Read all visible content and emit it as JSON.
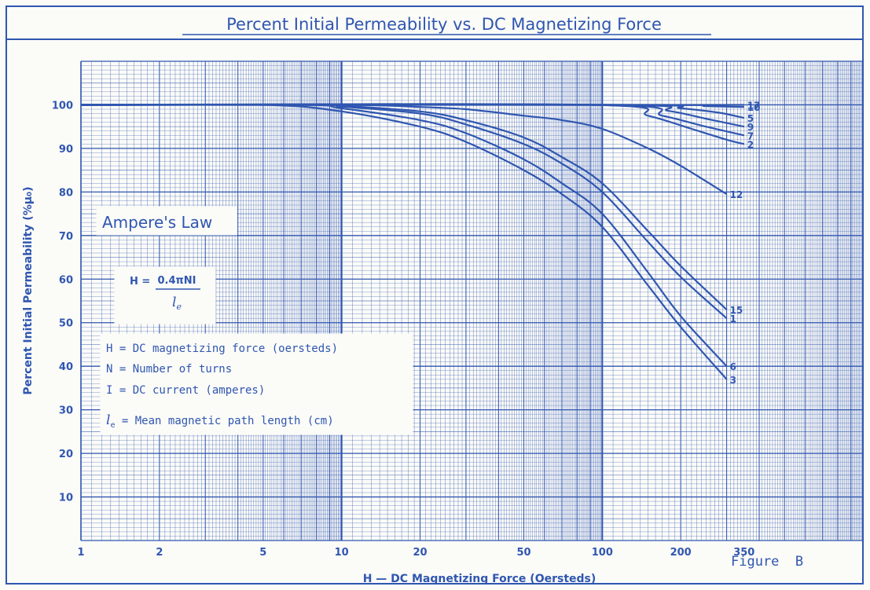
{
  "colors": {
    "ink": "#2f56b0",
    "paper": "#fbfbf8"
  },
  "chart_data": {
    "type": "line",
    "title": "Percent Initial Permeability vs. DC Magnetizing Force",
    "xlabel": "H — DC Magnetizing Force (Oersteds)",
    "ylabel": "Percent Initial Permeability (%μ₀)",
    "x_scale": "log",
    "xlim": [
      1,
      1000
    ],
    "ylim": [
      0,
      110
    ],
    "x_ticks": [
      1,
      2,
      5,
      10,
      20,
      50,
      100,
      200,
      350
    ],
    "x_tick_labels": [
      "1",
      "2",
      "5",
      "10",
      "20",
      "50",
      "100",
      "200",
      "350"
    ],
    "y_ticks": [
      10,
      20,
      30,
      40,
      50,
      60,
      70,
      80,
      90,
      100
    ],
    "y_tick_labels": [
      "10",
      "20",
      "30",
      "40",
      "50",
      "60",
      "70",
      "80",
      "90",
      "100"
    ],
    "grid": true,
    "figure_label": "Figure  B",
    "series": [
      {
        "name": "17",
        "x": [
          1,
          150,
          250,
          350
        ],
        "y": [
          100,
          100,
          100,
          100
        ]
      },
      {
        "name": "10",
        "x": [
          1,
          150,
          250,
          350
        ],
        "y": [
          100,
          100,
          99.7,
          99.5
        ]
      },
      {
        "name": "5",
        "x": [
          1,
          120,
          200,
          280,
          350
        ],
        "y": [
          100,
          100,
          99.2,
          98.2,
          97
        ]
      },
      {
        "name": "9",
        "x": [
          1,
          110,
          180,
          260,
          350
        ],
        "y": [
          100,
          100,
          98.6,
          96.6,
          95
        ]
      },
      {
        "name": "7",
        "x": [
          1,
          100,
          170,
          250,
          350
        ],
        "y": [
          100,
          100,
          97.5,
          95,
          93
        ]
      },
      {
        "name": "2",
        "x": [
          1,
          90,
          150,
          220,
          300,
          350
        ],
        "y": [
          100,
          100,
          97.5,
          94.5,
          92,
          91
        ]
      },
      {
        "name": "12",
        "x": [
          1,
          10,
          20,
          30,
          50,
          70,
          100,
          150,
          200,
          300
        ],
        "y": [
          100,
          100,
          99.5,
          99,
          97.5,
          96.5,
          94.5,
          90,
          86,
          79.5
        ]
      },
      {
        "name": "15",
        "x": [
          1,
          8,
          10,
          20,
          30,
          50,
          70,
          100,
          150,
          200,
          300
        ],
        "y": [
          100,
          100,
          99.8,
          98.5,
          96.5,
          92.5,
          88,
          82,
          71,
          63,
          53
        ]
      },
      {
        "name": "1",
        "x": [
          1,
          8,
          10,
          20,
          30,
          50,
          70,
          100,
          150,
          200,
          300
        ],
        "y": [
          100,
          100,
          99.6,
          98,
          95.5,
          91,
          86.5,
          80,
          68.5,
          60.5,
          51
        ]
      },
      {
        "name": "6",
        "x": [
          1,
          7,
          10,
          20,
          30,
          50,
          70,
          100,
          150,
          200,
          300
        ],
        "y": [
          100,
          100,
          99.2,
          96.5,
          93.5,
          87.5,
          82,
          75,
          61.5,
          51.5,
          40
        ]
      },
      {
        "name": "3",
        "x": [
          1,
          5,
          10,
          20,
          30,
          50,
          70,
          100,
          150,
          200,
          300
        ],
        "y": [
          100,
          100,
          98.5,
          95,
          91.5,
          85,
          79.5,
          72,
          58.5,
          49,
          37
        ]
      }
    ],
    "annotations": {
      "law_title": "Ampere's Law",
      "formula_lhs": "H = ",
      "formula_num": "0.4πNI",
      "formula_den": "l",
      "formula_den_sub": "e",
      "legend_lines": [
        "H = DC magnetizing force (oersteds)",
        "N = Number of turns",
        "I = DC current (amperes)"
      ],
      "legend_last_symbol": "l",
      "legend_last_sub": "e",
      "legend_last_text": " = Mean magnetic path length (cm)"
    }
  }
}
